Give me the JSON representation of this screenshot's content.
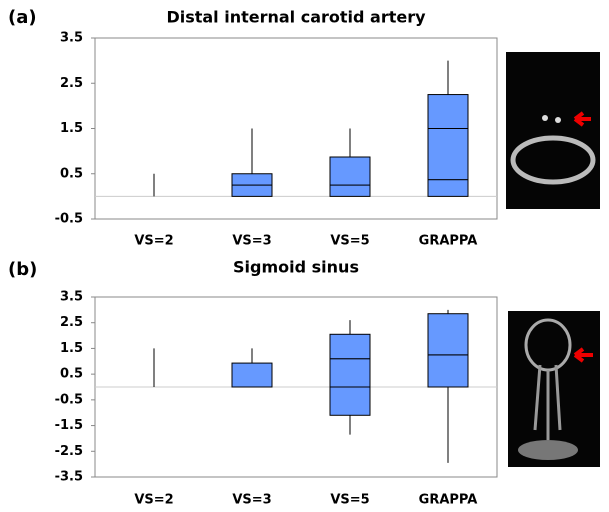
{
  "chart_data": [
    {
      "type": "box",
      "panel_label": "(a)",
      "title": "Distal internal carotid artery",
      "categories": [
        "VS=2",
        "VS=3",
        "VS=5",
        "GRAPPA"
      ],
      "series": [
        {
          "color": "#6699ff",
          "values": [
            null,
            0.25,
            0.25,
            0.37
          ]
        },
        {
          "color": "#6699ff",
          "values": [
            null,
            0.25,
            0.62,
            1.13
          ]
        },
        {
          "color": "#6699ff",
          "values": [
            null,
            null,
            null,
            0.75
          ]
        }
      ],
      "whisker_low": [
        0,
        0,
        0,
        0
      ],
      "whisker_high": [
        0.5,
        1.5,
        1.5,
        3
      ],
      "ylim": [
        -0.5,
        3.5
      ],
      "yticks": [
        -0.5,
        0.5,
        1.5,
        2.5,
        3.5
      ]
    },
    {
      "type": "box",
      "panel_label": "(b)",
      "title": "Sigmoid sinus",
      "categories": [
        "VS=2",
        "VS=3",
        "VS=5",
        "GRAPPA"
      ],
      "series": [
        {
          "color": "#6699ff",
          "values": [
            null,
            null,
            -1.1,
            null
          ]
        },
        {
          "color": "#6699ff",
          "values": [
            null,
            0.93,
            1.1,
            1.25
          ]
        },
        {
          "color": "#6699ff",
          "values": [
            null,
            null,
            0.95,
            1.6
          ]
        }
      ],
      "whisker_low": [
        0,
        0,
        -1.85,
        -2.95
      ],
      "whisker_high": [
        1.5,
        1.5,
        2.6,
        3
      ],
      "ylim": [
        -3.5,
        3.5
      ],
      "yticks": [
        -3.5,
        -2.5,
        -1.5,
        -0.5,
        0.5,
        1.5,
        2.5,
        3.5
      ]
    }
  ]
}
